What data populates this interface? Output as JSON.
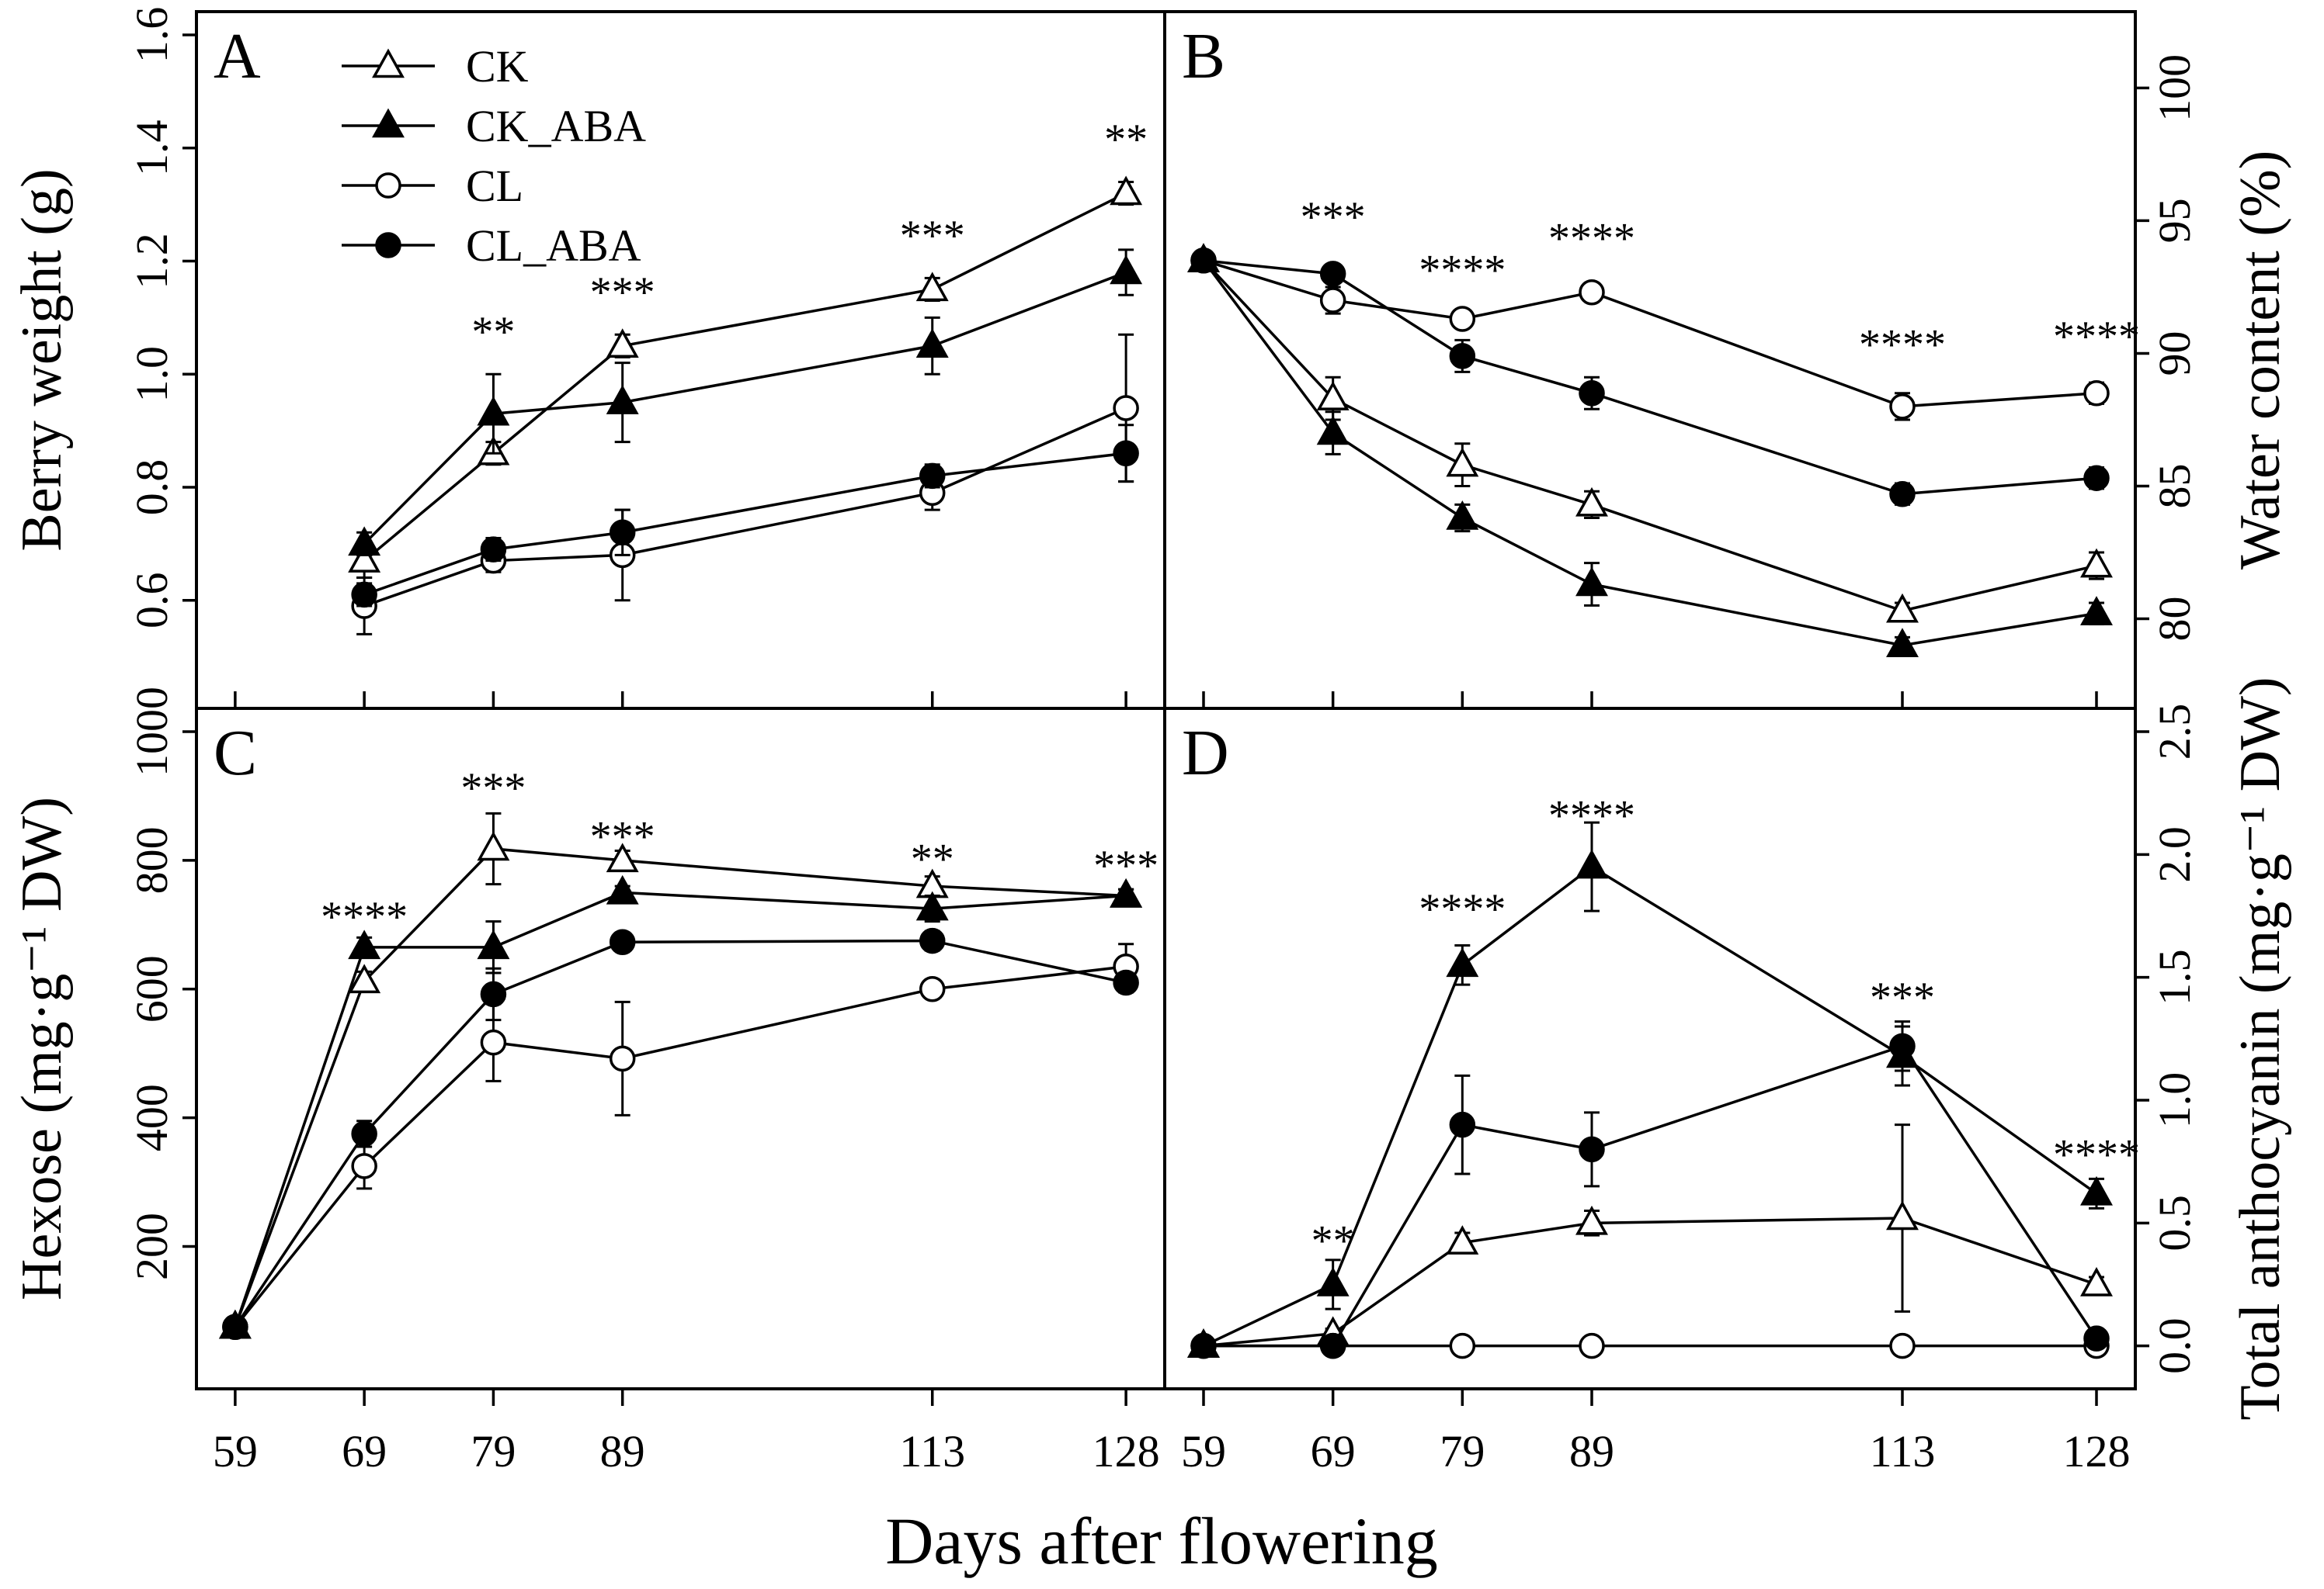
{
  "chart_data": {
    "type": "line",
    "xlabel": "Days after flowering",
    "x": [
      59,
      69,
      79,
      89,
      113,
      128
    ],
    "x_tick_labels": [
      "59",
      "69",
      "79",
      "89",
      "113",
      "128"
    ],
    "legend": [
      "CK",
      "CK_ABA",
      "CL",
      "CL_ABA"
    ],
    "panels": [
      {
        "id": "A",
        "ylabel": "Berry weight (g)",
        "y_axis_side": "left",
        "ylim": [
          0.45,
          1.6
        ],
        "y_ticks": [
          0.6,
          0.8,
          1.0,
          1.2,
          1.4,
          1.6
        ],
        "y_tick_labels": [
          "0.6",
          "0.8",
          "1.0",
          "1.2",
          "1.4",
          "1.6"
        ],
        "series": [
          {
            "name": "CK",
            "x": [
              69,
              79,
              89,
              113,
              128
            ],
            "values": [
              0.67,
              0.86,
              1.05,
              1.15,
              1.32
            ],
            "err": [
              0.03,
              0.02,
              0.02,
              0.02,
              0.02
            ]
          },
          {
            "name": "CK_ABA",
            "x": [
              69,
              79,
              89,
              113,
              128
            ],
            "values": [
              0.7,
              0.93,
              0.95,
              1.05,
              1.18
            ],
            "err": [
              0.02,
              0.07,
              0.07,
              0.05,
              0.04
            ]
          },
          {
            "name": "CL",
            "x": [
              69,
              79,
              89,
              113,
              128
            ],
            "values": [
              0.59,
              0.67,
              0.68,
              0.79,
              0.94
            ],
            "err": [
              0.05,
              0.02,
              0.08,
              0.03,
              0.13
            ]
          },
          {
            "name": "CL_ABA",
            "x": [
              69,
              79,
              89,
              113,
              128
            ],
            "values": [
              0.61,
              0.69,
              0.72,
              0.82,
              0.86
            ],
            "err": [
              0.02,
              0.02,
              0.04,
              0.02,
              0.05
            ]
          }
        ],
        "significance": [
          {
            "x": 79,
            "y": 1.05,
            "label": "**"
          },
          {
            "x": 89,
            "y": 1.12,
            "label": "***"
          },
          {
            "x": 113,
            "y": 1.22,
            "label": "***"
          },
          {
            "x": 128,
            "y": 1.39,
            "label": "**"
          }
        ]
      },
      {
        "id": "B",
        "ylabel": "Water content (%)",
        "y_axis_side": "right",
        "ylim": [
          77.5,
          102
        ],
        "y_ticks": [
          80,
          85,
          90,
          95,
          100
        ],
        "y_tick_labels": [
          "80",
          "85",
          "90",
          "95",
          "100"
        ],
        "series": [
          {
            "name": "CK",
            "x": [
              59,
              69,
              79,
              89,
              113,
              128
            ],
            "values": [
              93.5,
              88.3,
              85.8,
              84.3,
              80.3,
              82.0
            ],
            "err": [
              0.2,
              0.8,
              0.8,
              0.5,
              0.3,
              0.5
            ]
          },
          {
            "name": "CK_ABA",
            "x": [
              59,
              69,
              79,
              89,
              113,
              128
            ],
            "values": [
              93.5,
              87.0,
              83.8,
              81.3,
              79.0,
              80.2
            ],
            "err": [
              0.2,
              0.8,
              0.5,
              0.8,
              0.3,
              0.4
            ]
          },
          {
            "name": "CL",
            "x": [
              59,
              69,
              79,
              89,
              113,
              128
            ],
            "values": [
              93.5,
              92.0,
              91.3,
              92.3,
              88.0,
              88.5
            ],
            "err": [
              0.2,
              0.5,
              0.3,
              0.2,
              0.5,
              0.4
            ]
          },
          {
            "name": "CL_ABA",
            "x": [
              59,
              69,
              79,
              89,
              113,
              128
            ],
            "values": [
              93.5,
              93.0,
              89.9,
              88.5,
              84.7,
              85.3
            ],
            "err": [
              0.2,
              0.3,
              0.6,
              0.6,
              0.4,
              0.4
            ]
          }
        ],
        "significance": [
          {
            "x": 69,
            "y": 94.6,
            "label": "***"
          },
          {
            "x": 79,
            "y": 92.6,
            "label": "****"
          },
          {
            "x": 89,
            "y": 93.8,
            "label": "****"
          },
          {
            "x": 113,
            "y": 89.8,
            "label": "****"
          },
          {
            "x": 128,
            "y": 90.1,
            "label": "****"
          }
        ]
      },
      {
        "id": "C",
        "ylabel": "Hexose (mg·g⁻¹ DW)",
        "y_axis_side": "left",
        "ylim": [
          15,
          1000
        ],
        "y_ticks": [
          200,
          400,
          600,
          800,
          1000
        ],
        "y_tick_labels": [
          "200",
          "400",
          "600",
          "800",
          "1000"
        ],
        "series": [
          {
            "name": "CK",
            "x": [
              59,
              69,
              79,
              89,
              113,
              128
            ],
            "values": [
              75,
              612,
              818,
              800,
              760,
              745
            ],
            "err": [
              0,
              15,
              55,
              15,
              15,
              10
            ]
          },
          {
            "name": "CK_ABA",
            "x": [
              59,
              69,
              79,
              89,
              113,
              128
            ],
            "values": [
              75,
              665,
              665,
              750,
              725,
              745
            ],
            "err": [
              0,
              15,
              40,
              10,
              20,
              10
            ]
          },
          {
            "name": "CL",
            "x": [
              59,
              69,
              79,
              89,
              113,
              128
            ],
            "values": [
              75,
              325,
              517,
              492,
              600,
              635
            ],
            "err": [
              0,
              35,
              60,
              88,
              10,
              35
            ]
          },
          {
            "name": "CL_ABA",
            "x": [
              59,
              69,
              79,
              89,
              113,
              128
            ],
            "values": [
              75,
              375,
              592,
              673,
              675,
              610
            ],
            "err": [
              0,
              20,
              40,
              10,
              15,
              15
            ]
          }
        ],
        "significance": [
          {
            "x": 69,
            "y": 690,
            "label": "****"
          },
          {
            "x": 79,
            "y": 890,
            "label": "***"
          },
          {
            "x": 89,
            "y": 815,
            "label": "***"
          },
          {
            "x": 113,
            "y": 780,
            "label": "**"
          },
          {
            "x": 128,
            "y": 770,
            "label": "***"
          }
        ]
      },
      {
        "id": "D",
        "ylabel": "Total anthocyanin (mg·g⁻¹ DW)",
        "y_axis_side": "right",
        "ylim": [
          -0.08,
          2.5
        ],
        "y_ticks": [
          0.0,
          0.5,
          1.0,
          1.5,
          2.0,
          2.5
        ],
        "y_tick_labels": [
          "0.0",
          "0.5",
          "1.0",
          "1.5",
          "2.0",
          "2.5"
        ],
        "series": [
          {
            "name": "CK",
            "x": [
              59,
              69,
              79,
              89,
              113,
              128
            ],
            "values": [
              0.0,
              0.05,
              0.42,
              0.5,
              0.52,
              0.25
            ],
            "err": [
              0,
              0.02,
              0.04,
              0.05,
              0.38,
              0.03
            ]
          },
          {
            "name": "CK_ABA",
            "x": [
              59,
              69,
              79,
              89,
              113,
              128
            ],
            "values": [
              0.0,
              0.25,
              1.55,
              1.95,
              1.18,
              0.62
            ],
            "err": [
              0,
              0.1,
              0.08,
              0.18,
              0.12,
              0.06
            ]
          },
          {
            "name": "CL",
            "x": [
              59,
              69,
              79,
              89,
              113,
              128
            ],
            "values": [
              0.0,
              0.0,
              0.0,
              0.0,
              0.0,
              0.0
            ],
            "err": [
              0,
              0,
              0,
              0,
              0,
              0
            ]
          },
          {
            "name": "CL_ABA",
            "x": [
              59,
              69,
              79,
              89,
              113,
              128
            ],
            "values": [
              0.0,
              0.0,
              0.9,
              0.8,
              1.22,
              0.03
            ],
            "err": [
              0,
              0,
              0.2,
              0.15,
              0.1,
              0.01
            ]
          }
        ],
        "significance": [
          {
            "x": 69,
            "y": 0.37,
            "label": "**"
          },
          {
            "x": 79,
            "y": 1.72,
            "label": "****"
          },
          {
            "x": 89,
            "y": 2.1,
            "label": "****"
          },
          {
            "x": 113,
            "y": 1.36,
            "label": "***"
          },
          {
            "x": 128,
            "y": 0.72,
            "label": "****"
          }
        ]
      }
    ]
  }
}
